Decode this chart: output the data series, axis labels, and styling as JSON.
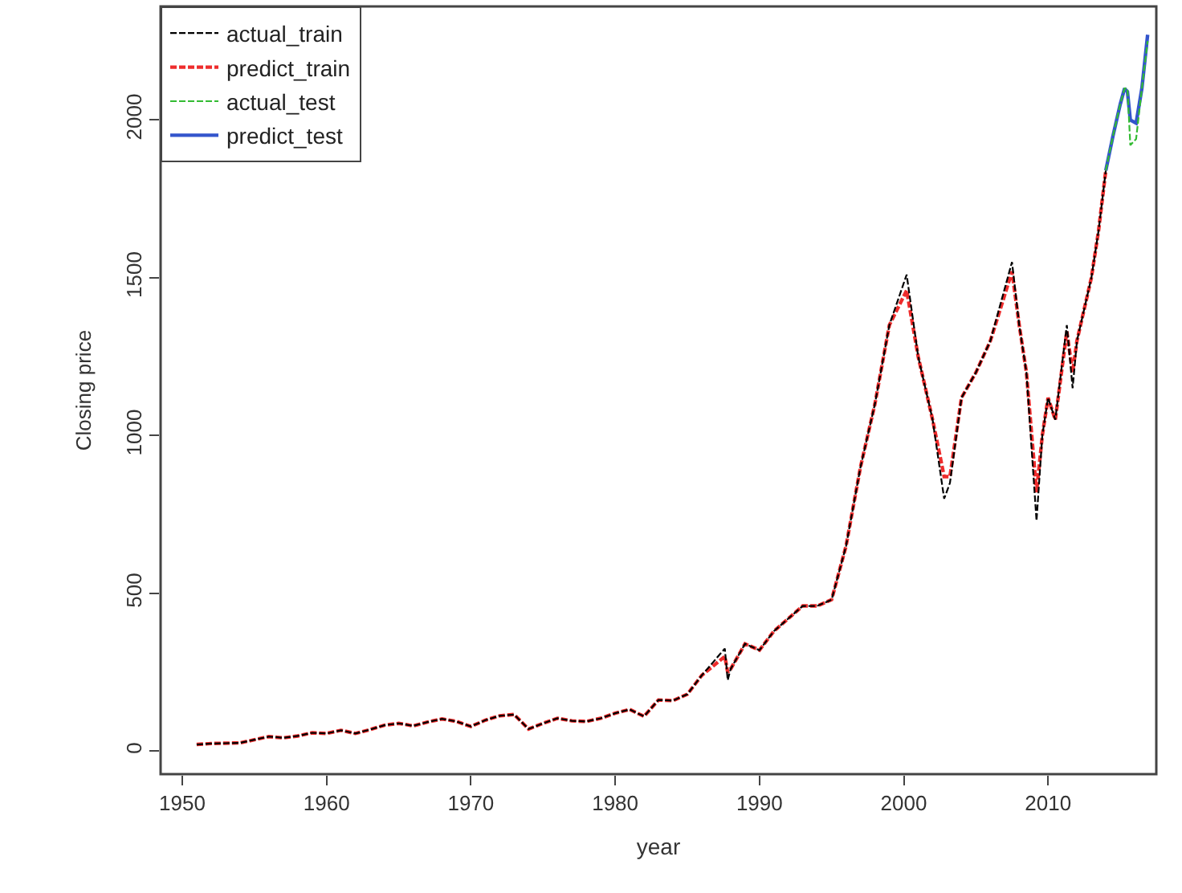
{
  "chart_data": {
    "type": "line",
    "xlabel": "year",
    "ylabel": "Closing price",
    "xlim": [
      1948.5,
      2017.5
    ],
    "ylim": [
      -73,
      2360
    ],
    "xticks": [
      1950,
      1960,
      1970,
      1980,
      1990,
      2000,
      2010
    ],
    "yticks": [
      0,
      500,
      1000,
      1500,
      2000
    ],
    "legend": "top left",
    "marker": "none",
    "series": [
      {
        "name": "actual_train",
        "color": "#000000",
        "line_style": "dashed",
        "x": [
          1951,
          1952,
          1953,
          1954,
          1955,
          1956,
          1957,
          1958,
          1959,
          1960,
          1961,
          1962,
          1963,
          1964,
          1965,
          1966,
          1967,
          1968,
          1969,
          1970,
          1971,
          1972,
          1973,
          1974,
          1975,
          1976,
          1977,
          1978,
          1979,
          1980,
          1981,
          1982,
          1983,
          1984,
          1985,
          1986,
          1987.6,
          1987.8,
          1988,
          1989,
          1990,
          1991,
          1992,
          1993,
          1994,
          1995,
          1996,
          1997,
          1998,
          1999,
          2000.2,
          2001,
          2002,
          2002.8,
          2003.2,
          2004,
          2005,
          2006,
          2007.5,
          2008,
          2008.5,
          2009.2,
          2009.6,
          2010,
          2010.5,
          2011.3,
          2011.7,
          2012,
          2013,
          2013.5,
          2014
        ],
        "values": [
          21,
          24,
          25,
          26,
          36,
          46,
          42,
          48,
          58,
          56,
          66,
          56,
          68,
          82,
          88,
          80,
          92,
          102,
          94,
          78,
          98,
          112,
          116,
          70,
          88,
          104,
          96,
          94,
          104,
          120,
          132,
          110,
          162,
          160,
          180,
          240,
          325,
          225,
          260,
          340,
          320,
          380,
          420,
          460,
          460,
          480,
          650,
          900,
          1100,
          1350,
          1510,
          1250,
          1050,
          800,
          850,
          1120,
          1200,
          1300,
          1550,
          1350,
          1200,
          730,
          1000,
          1120,
          1050,
          1350,
          1150,
          1300,
          1500,
          1650,
          1840
        ]
      },
      {
        "name": "predict_train",
        "color": "#ee2c2c",
        "line_style": "dashed",
        "x": [
          1951,
          1952,
          1953,
          1954,
          1955,
          1956,
          1957,
          1958,
          1959,
          1960,
          1961,
          1962,
          1963,
          1964,
          1965,
          1966,
          1967,
          1968,
          1969,
          1970,
          1971,
          1972,
          1973,
          1974,
          1975,
          1976,
          1977,
          1978,
          1979,
          1980,
          1981,
          1982,
          1983,
          1984,
          1985,
          1986,
          1987.6,
          1987.8,
          1988,
          1989,
          1990,
          1991,
          1992,
          1993,
          1994,
          1995,
          1996,
          1997,
          1998,
          1999,
          2000.2,
          2001,
          2002,
          2002.8,
          2003.2,
          2004,
          2005,
          2006,
          2007.5,
          2008,
          2008.5,
          2009.2,
          2009.6,
          2010,
          2010.5,
          2011.3,
          2011.7,
          2012,
          2013,
          2013.5,
          2014
        ],
        "values": [
          21,
          24,
          25,
          26,
          36,
          46,
          42,
          48,
          58,
          56,
          66,
          56,
          68,
          82,
          88,
          80,
          92,
          102,
          94,
          78,
          98,
          112,
          116,
          70,
          88,
          104,
          96,
          94,
          104,
          120,
          132,
          110,
          162,
          160,
          180,
          240,
          300,
          250,
          260,
          340,
          320,
          380,
          420,
          460,
          460,
          480,
          650,
          900,
          1100,
          1350,
          1460,
          1250,
          1050,
          870,
          870,
          1120,
          1200,
          1300,
          1520,
          1350,
          1200,
          820,
          1000,
          1120,
          1050,
          1330,
          1200,
          1300,
          1500,
          1650,
          1840
        ]
      },
      {
        "name": "actual_test",
        "color": "#33bb33",
        "line_style": "dashed",
        "x": [
          2014,
          2014.5,
          2015,
          2015.3,
          2015.5,
          2015.7,
          2016.1,
          2016.5,
          2016.9
        ],
        "values": [
          1840,
          1950,
          2050,
          2100,
          2100,
          1920,
          1940,
          2100,
          2250
        ]
      },
      {
        "name": "predict_test",
        "color": "#3355cc",
        "line_style": "solid",
        "x": [
          2014,
          2014.5,
          2015,
          2015.3,
          2015.5,
          2015.7,
          2016.1,
          2016.5,
          2016.9
        ],
        "values": [
          1840,
          1950,
          2050,
          2100,
          2090,
          2000,
          1990,
          2100,
          2270
        ]
      }
    ]
  }
}
